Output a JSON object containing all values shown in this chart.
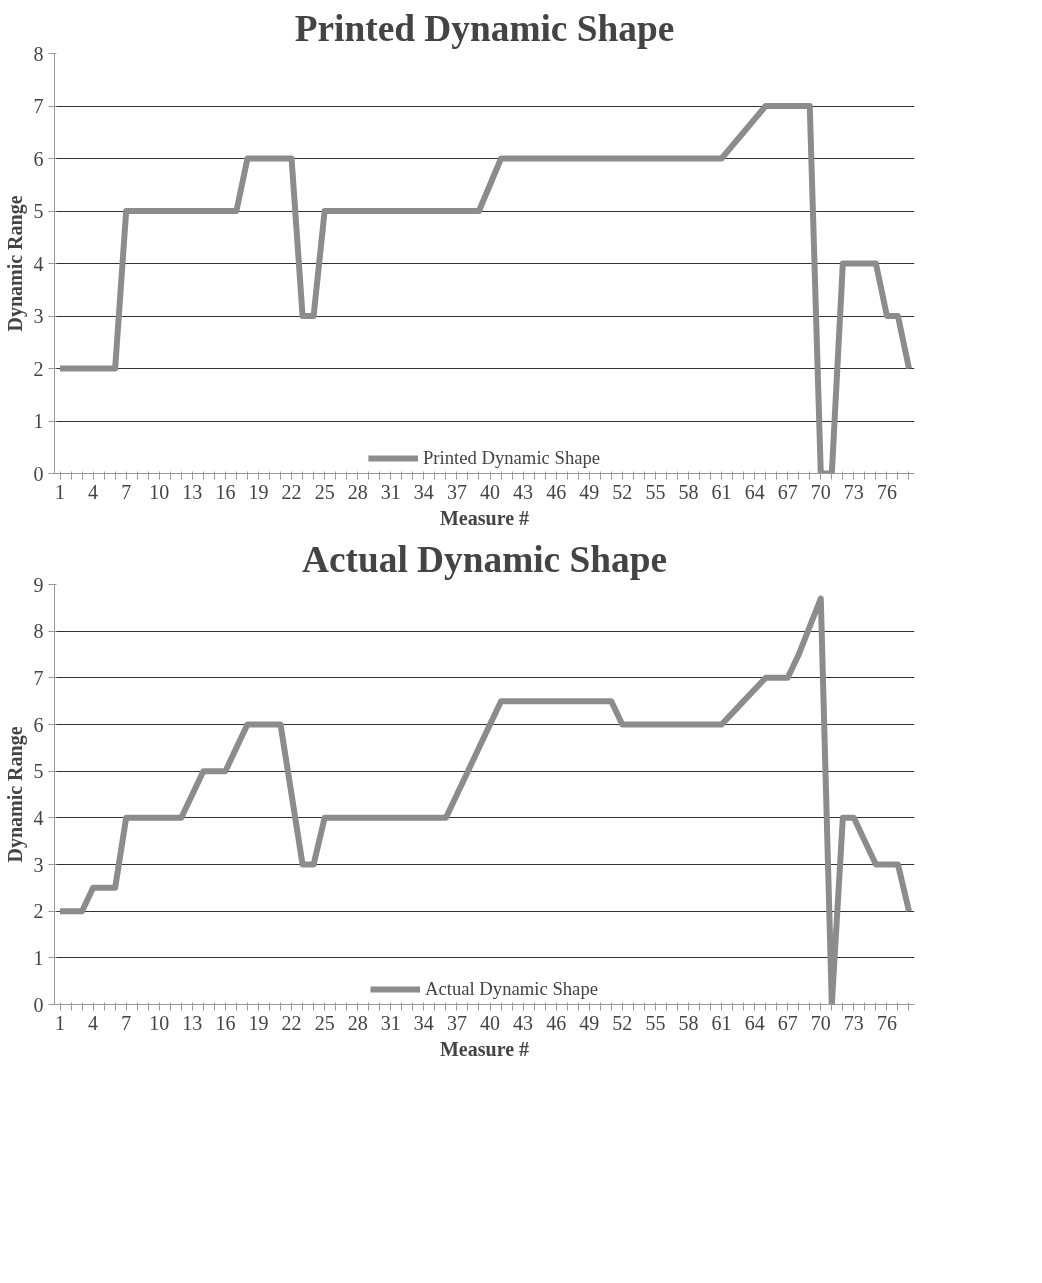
{
  "chart_data": [
    {
      "type": "line",
      "title": "Printed Dynamic Shape",
      "xlabel": "Measure #",
      "ylabel": "Dynamic Range",
      "categories": [
        "1",
        null,
        null,
        "4",
        null,
        null,
        "7",
        null,
        null,
        "10",
        null,
        null,
        "13",
        null,
        null,
        "16",
        null,
        null,
        "19",
        null,
        null,
        "22",
        null,
        null,
        "25",
        null,
        null,
        "28",
        null,
        null,
        "31",
        null,
        null,
        "34",
        null,
        null,
        "37",
        null,
        null,
        "40",
        null,
        null,
        "43",
        null,
        null,
        "46",
        null,
        null,
        "49",
        null,
        null,
        "52",
        null,
        null,
        "55",
        null,
        null,
        "58",
        null,
        null,
        "61",
        null,
        null,
        "64",
        null,
        null,
        "67",
        null,
        null,
        "70",
        null,
        null,
        "73",
        null,
        null,
        "76",
        null,
        null
      ],
      "series": [
        {
          "name": "Printed Dynamic Shape",
          "color": "#8c8c8c",
          "values": [
            2,
            2,
            2,
            2,
            2,
            2,
            5,
            5,
            5,
            5,
            5,
            5,
            5,
            5,
            5,
            5,
            5,
            6,
            6,
            6,
            6,
            6,
            3,
            3,
            5,
            5,
            5,
            5,
            5,
            5,
            5,
            5,
            5,
            5,
            5,
            5,
            5,
            5,
            5,
            5.5,
            6,
            6,
            6,
            6,
            6,
            6,
            6,
            6,
            6,
            6,
            6,
            6,
            6,
            6,
            6,
            6,
            6,
            6,
            6,
            6,
            6,
            6.25,
            6.5,
            6.75,
            7,
            7,
            7,
            7,
            7,
            0,
            0,
            4,
            4,
            4,
            4,
            3,
            3,
            2
          ]
        }
      ],
      "ylim": [
        0,
        8
      ],
      "yticks": [
        0,
        1,
        2,
        3,
        4,
        5,
        6,
        7,
        8
      ],
      "grid": "y",
      "legend": "bottom",
      "marker": "none",
      "line_style": "solid"
    },
    {
      "type": "line",
      "title": "Actual Dynamic Shape",
      "xlabel": "Measure #",
      "ylabel": "Dynamic Range",
      "categories": [
        "1",
        null,
        null,
        "4",
        null,
        null,
        "7",
        null,
        null,
        "10",
        null,
        null,
        "13",
        null,
        null,
        "16",
        null,
        null,
        "19",
        null,
        null,
        "22",
        null,
        null,
        "25",
        null,
        null,
        "28",
        null,
        null,
        "31",
        null,
        null,
        "34",
        null,
        null,
        "37",
        null,
        null,
        "40",
        null,
        null,
        "43",
        null,
        null,
        "46",
        null,
        null,
        "49",
        null,
        null,
        "52",
        null,
        null,
        "55",
        null,
        null,
        "58",
        null,
        null,
        "61",
        null,
        null,
        "64",
        null,
        null,
        "67",
        null,
        null,
        "70",
        null,
        null,
        "73",
        null,
        null,
        "76",
        null,
        null
      ],
      "series": [
        {
          "name": "Actual Dynamic Shape",
          "color": "#8c8c8c",
          "values": [
            2,
            2,
            2,
            2.5,
            2.5,
            2.5,
            4,
            4,
            4,
            4,
            4,
            4,
            4.5,
            5,
            5,
            5,
            5.5,
            6,
            6,
            6,
            6,
            4.5,
            3,
            3,
            4,
            4,
            4,
            4,
            4,
            4,
            4,
            4,
            4,
            4,
            4,
            4,
            4.5,
            5,
            5.5,
            6,
            6.5,
            6.5,
            6.5,
            6.5,
            6.5,
            6.5,
            6.5,
            6.5,
            6.5,
            6.5,
            6.5,
            6,
            6,
            6,
            6,
            6,
            6,
            6,
            6,
            6,
            6,
            6.25,
            6.5,
            6.75,
            7,
            7,
            7,
            7.5,
            8.1,
            8.7,
            0,
            4,
            4,
            3.5,
            3,
            3,
            3,
            2
          ]
        }
      ],
      "ylim": [
        0,
        9
      ],
      "yticks": [
        0,
        1,
        2,
        3,
        4,
        5,
        6,
        7,
        8,
        9
      ],
      "grid": "y",
      "legend": "bottom",
      "marker": "none",
      "line_style": "solid"
    }
  ]
}
